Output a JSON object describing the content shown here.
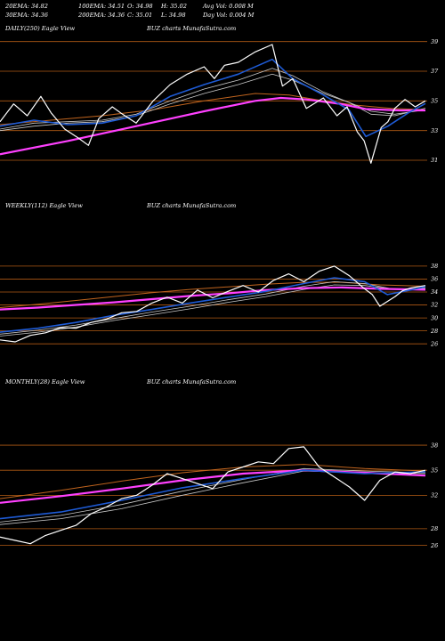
{
  "header": {
    "line1": [
      "20EMA: 34.82",
      "100EMA: 34.51",
      "O: 34.98",
      "H: 35.02",
      "Avg Vol: 0.008 M"
    ],
    "line2": [
      "30EMA: 34.36",
      "200EMA: 34.36",
      "C: 35.01",
      "L: 34.98",
      "Day Vol: 0.004 M"
    ]
  },
  "colors": {
    "background": "#000000",
    "price": "#ffffff",
    "ema_fast": "#1e5bd6",
    "ema_slow": "#ff40ff",
    "ema_long": "#c0641e",
    "ema_grey": "#c8c8c8",
    "gridline": "#b05a14"
  },
  "chart_data": [
    {
      "type": "line",
      "label_left": "DAILY(250) Eagle  View",
      "label_center": "BUZ charts MunafaSutra.com",
      "ylim": [
        30.4,
        39.4
      ],
      "yticks": [
        39,
        37,
        35,
        33,
        31
      ],
      "n": 250,
      "series": [
        {
          "role": "price",
          "x": [
            0,
            8,
            16,
            24,
            30,
            38,
            46,
            52,
            58,
            66,
            72,
            80,
            90,
            100,
            110,
            120,
            126,
            132,
            140,
            150,
            160,
            166,
            172,
            180,
            190,
            198,
            204,
            210,
            214,
            218,
            224,
            228,
            232,
            238,
            244,
            250
          ],
          "values": [
            33.6,
            34.8,
            34.0,
            35.3,
            34.2,
            33.1,
            32.5,
            32.0,
            33.8,
            34.6,
            34.1,
            33.5,
            35.0,
            36.1,
            36.8,
            37.3,
            36.5,
            37.4,
            37.6,
            38.3,
            38.8,
            36.0,
            36.5,
            34.5,
            35.2,
            34.0,
            34.6,
            32.9,
            32.3,
            30.8,
            33.2,
            33.6,
            34.5,
            35.1,
            34.6,
            35.0
          ]
        },
        {
          "role": "ema_fast",
          "x": [
            0,
            20,
            40,
            60,
            80,
            100,
            120,
            140,
            160,
            172,
            190,
            205,
            215,
            228,
            240,
            250
          ],
          "values": [
            33.3,
            33.7,
            33.4,
            33.5,
            34.0,
            35.3,
            36.1,
            36.8,
            37.8,
            36.5,
            35.4,
            34.4,
            32.6,
            33.3,
            34.2,
            34.82
          ]
        },
        {
          "role": "ema_grey_1",
          "x": [
            0,
            20,
            40,
            60,
            80,
            100,
            120,
            140,
            160,
            172,
            190,
            205,
            218,
            232,
            250
          ],
          "values": [
            33.1,
            33.5,
            33.6,
            33.7,
            34.1,
            35.0,
            35.8,
            36.4,
            37.2,
            36.7,
            35.6,
            34.9,
            34.1,
            34.0,
            34.51
          ]
        },
        {
          "role": "ema_grey_2",
          "x": [
            0,
            20,
            40,
            60,
            80,
            100,
            120,
            140,
            160,
            172,
            190,
            205,
            218,
            232,
            250
          ],
          "values": [
            33.0,
            33.3,
            33.5,
            33.6,
            34.0,
            34.8,
            35.5,
            36.1,
            36.8,
            36.4,
            35.5,
            34.9,
            34.3,
            34.1,
            34.4
          ]
        },
        {
          "role": "ema_long",
          "x": [
            0,
            30,
            60,
            90,
            120,
            150,
            170,
            190,
            210,
            230,
            250
          ],
          "values": [
            33.4,
            33.7,
            34.0,
            34.4,
            35.0,
            35.5,
            35.4,
            35.0,
            34.7,
            34.5,
            34.4
          ]
        },
        {
          "role": "ema_slow",
          "x": [
            0,
            40,
            80,
            120,
            150,
            165,
            180,
            200,
            215,
            235,
            250
          ],
          "values": [
            31.4,
            32.3,
            33.3,
            34.3,
            35.0,
            35.2,
            35.1,
            34.8,
            34.45,
            34.36,
            34.36
          ]
        }
      ]
    },
    {
      "type": "line",
      "label_left": "WEEKLY(112) Eagle  View",
      "label_center": "BUZ charts MunafaSutra.com",
      "ylim": [
        25.2,
        39.5
      ],
      "yticks": [
        38,
        36,
        34,
        32,
        30,
        28,
        26
      ],
      "n": 112,
      "series": [
        {
          "role": "price",
          "x": [
            0,
            4,
            8,
            12,
            16,
            20,
            24,
            28,
            32,
            36,
            40,
            44,
            48,
            52,
            56,
            60,
            64,
            68,
            72,
            76,
            80,
            84,
            88,
            92,
            96,
            98,
            100,
            104,
            106,
            108,
            112
          ],
          "values": [
            26.6,
            26.3,
            27.3,
            27.7,
            28.5,
            28.4,
            29.3,
            29.8,
            30.8,
            31.0,
            32.3,
            33.2,
            32.3,
            34.3,
            33.1,
            34.1,
            35.0,
            34.0,
            35.8,
            36.8,
            35.6,
            37.2,
            38.0,
            36.5,
            34.5,
            33.6,
            31.8,
            33.3,
            34.2,
            34.6,
            35.0
          ]
        },
        {
          "role": "ema_fast",
          "x": [
            0,
            10,
            20,
            30,
            40,
            50,
            60,
            70,
            80,
            88,
            96,
            102,
            108,
            112
          ],
          "values": [
            27.8,
            28.4,
            29.3,
            30.4,
            31.3,
            32.3,
            33.2,
            34.1,
            35.3,
            36.2,
            35.6,
            33.6,
            34.3,
            34.82
          ]
        },
        {
          "role": "ema_grey_1",
          "x": [
            0,
            10,
            20,
            30,
            40,
            50,
            60,
            70,
            80,
            88,
            96,
            104,
            112
          ],
          "values": [
            27.5,
            28.1,
            28.9,
            29.9,
            30.9,
            31.8,
            32.8,
            33.7,
            34.9,
            35.6,
            35.3,
            34.4,
            34.6
          ]
        },
        {
          "role": "ema_grey_2",
          "x": [
            0,
            10,
            20,
            30,
            40,
            50,
            60,
            70,
            80,
            88,
            96,
            104,
            112
          ],
          "values": [
            27.2,
            27.8,
            28.6,
            29.6,
            30.5,
            31.4,
            32.4,
            33.3,
            34.4,
            35.1,
            35.0,
            34.4,
            34.5
          ]
        },
        {
          "role": "ema_slow",
          "x": [
            0,
            10,
            20,
            30,
            40,
            50,
            60,
            70,
            80,
            90,
            100,
            112
          ],
          "values": [
            31.3,
            31.6,
            32.0,
            32.4,
            32.9,
            33.4,
            33.8,
            34.3,
            34.6,
            34.7,
            34.5,
            34.36
          ]
        },
        {
          "role": "ema_long",
          "x": [
            0,
            10,
            20,
            30,
            40,
            50,
            60,
            70,
            80,
            90,
            100,
            112
          ],
          "values": [
            31.6,
            32.1,
            32.7,
            33.3,
            33.9,
            34.4,
            34.8,
            35.2,
            35.5,
            35.5,
            35.1,
            34.9
          ]
        }
      ]
    },
    {
      "type": "line",
      "label_left": "MONTHLY(28) Eagle  View",
      "label_center": "BUZ charts MunafaSutra.com",
      "ylim": [
        25.0,
        39.5
      ],
      "yticks": [
        38,
        35,
        32,
        28,
        26
      ],
      "n": 28,
      "series": [
        {
          "role": "price",
          "x": [
            0,
            1,
            2,
            3,
            4,
            5,
            6,
            7,
            8,
            9,
            10,
            11,
            12,
            13,
            14,
            15,
            16,
            17,
            18,
            19,
            20,
            21,
            22,
            23,
            24,
            25,
            26,
            27,
            28
          ],
          "values": [
            27.0,
            26.6,
            26.2,
            27.2,
            27.8,
            28.4,
            29.8,
            30.6,
            31.6,
            32.0,
            33.2,
            34.6,
            34.0,
            33.4,
            32.8,
            34.8,
            35.4,
            36.0,
            35.8,
            37.6,
            37.8,
            35.4,
            34.2,
            33.0,
            31.4,
            33.8,
            34.8,
            34.6,
            35.0
          ]
        },
        {
          "role": "ema_fast",
          "x": [
            0,
            4,
            8,
            12,
            16,
            20,
            24,
            28
          ],
          "values": [
            29.2,
            30.0,
            31.4,
            32.9,
            34.0,
            35.0,
            34.6,
            34.82
          ]
        },
        {
          "role": "ema_grey_1",
          "x": [
            0,
            4,
            8,
            12,
            16,
            20,
            24,
            28
          ],
          "values": [
            28.8,
            29.6,
            30.9,
            32.5,
            33.9,
            35.2,
            34.9,
            34.7
          ]
        },
        {
          "role": "ema_grey_2",
          "x": [
            0,
            4,
            8,
            12,
            16,
            20,
            24,
            28
          ],
          "values": [
            28.5,
            29.2,
            30.4,
            32.0,
            33.5,
            34.9,
            34.7,
            34.6
          ]
        },
        {
          "role": "ema_slow",
          "x": [
            0,
            4,
            8,
            12,
            16,
            20,
            24,
            28
          ],
          "values": [
            31.1,
            31.9,
            32.8,
            33.8,
            34.6,
            35.0,
            34.7,
            34.36
          ]
        },
        {
          "role": "ema_long",
          "x": [
            0,
            4,
            8,
            12,
            16,
            20,
            24,
            28
          ],
          "values": [
            31.6,
            32.6,
            33.7,
            34.7,
            35.4,
            35.7,
            35.2,
            34.9
          ]
        }
      ]
    }
  ]
}
